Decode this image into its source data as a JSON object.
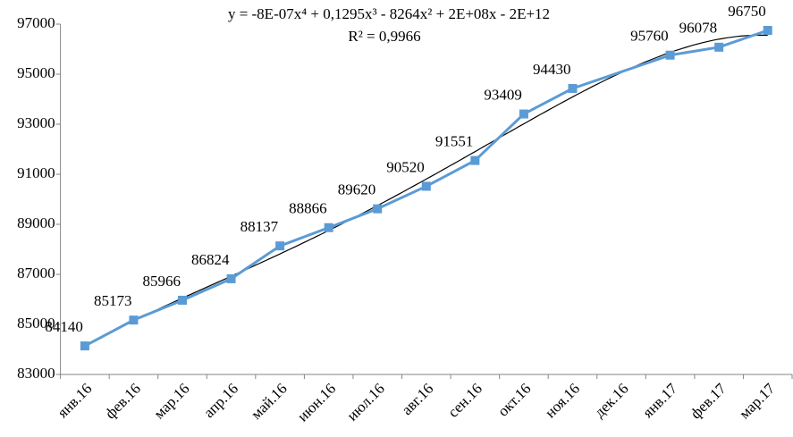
{
  "chart_data": {
    "type": "line",
    "categories": [
      "янв.16",
      "фев.16",
      "мар.16",
      "апр.16",
      "май.16",
      "июн.16",
      "июл.16",
      "авг.16",
      "сен.16",
      "окт.16",
      "ноя.16",
      "дек.16",
      "янв.17",
      "фев.17",
      "мар.17"
    ],
    "series": [
      {
        "color": "#5b9bd5",
        "values": [
          84140,
          85173,
          85966,
          86824,
          88137,
          88866,
          89620,
          90520,
          91551,
          93409,
          94430,
          null,
          95760,
          96078,
          96750
        ]
      }
    ],
    "connect_gaps": true,
    "ylim": [
      83000,
      97000
    ],
    "yticks": [
      83000,
      85000,
      87000,
      89000,
      91000,
      93000,
      95000,
      97000
    ],
    "grid": false,
    "trendline": {
      "type": "polynomial",
      "order": 4,
      "color": "#000000",
      "equation": "y = -8E-07x⁴ + 0,1295x³ - 8264x² + 2E+08x - 2E+12",
      "r_squared": "R² = 0,9966"
    }
  }
}
